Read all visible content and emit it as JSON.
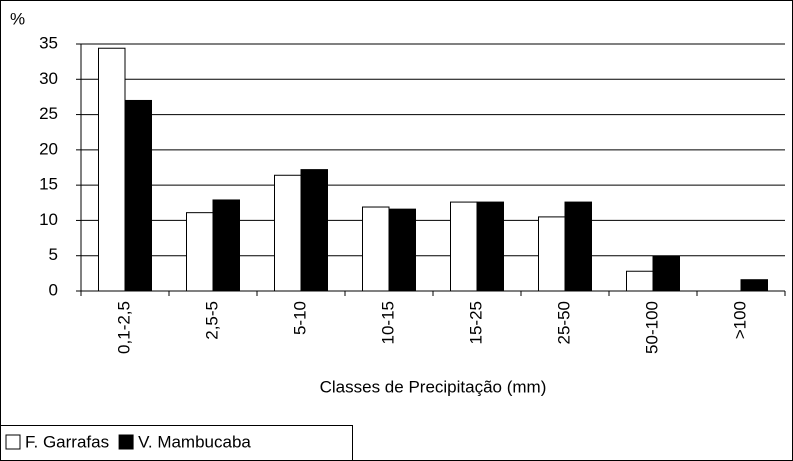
{
  "chart_data": {
    "type": "bar",
    "y_label": "%",
    "x_label": "Classes de Precipitação (mm)",
    "categories": [
      "0,1-2,5",
      "2,5-5",
      "5-10",
      "10-15",
      "15-25",
      "25-50",
      "50-100",
      ">100"
    ],
    "series": [
      {
        "name": "F. Garrafas",
        "color": "#ffffff",
        "values": [
          34.4,
          11.1,
          16.4,
          11.9,
          12.6,
          10.5,
          2.8,
          0
        ]
      },
      {
        "name": "V. Mambucaba",
        "color": "#000000",
        "values": [
          27,
          12.9,
          17.2,
          11.6,
          12.6,
          12.6,
          4.9,
          1.6
        ]
      }
    ],
    "ylim": [
      0,
      35
    ],
    "yticks": [
      0,
      5,
      10,
      15,
      20,
      25,
      30,
      35
    ],
    "grid": true,
    "legend": "bottom-left"
  }
}
